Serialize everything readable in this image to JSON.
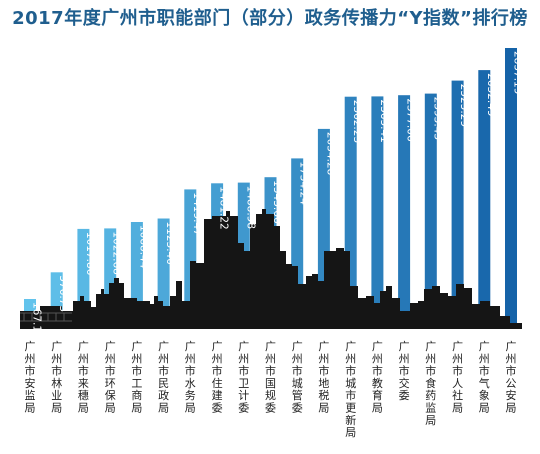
{
  "chart_data": {
    "type": "bar",
    "title": "2017年度广州市职能部门（部分）政务传播力“Y指数”排行榜",
    "xlabel": "",
    "ylabel": "",
    "ylim": [
      0,
      2857.19
    ],
    "grid": false,
    "legend": "none",
    "categories": [
      "广州市安监局",
      "广州市林业局",
      "广州市来穗局",
      "广州市环保局",
      "广州市工商局",
      "广州市民政局",
      "广州市水务局",
      "广州市住建委",
      "广州市卫计委",
      "广州市国规委",
      "广州市城管委",
      "广州市地税局",
      "广州市城市更新局",
      "广州市教育局",
      "广州市交委",
      "广州市食药监局",
      "广州市人社局",
      "广州市气象局",
      "广州市公安局"
    ],
    "value_labels": [
      "167.16",
      "576.73",
      "1017.86",
      "1022.68",
      "1088.44",
      "1123.40",
      "1419.47",
      "1481.22",
      "1488.98",
      "1543.66",
      "1734.24",
      "2034.28",
      "2362.23",
      "2365.41",
      "2377.06",
      "2393.43",
      "2525.29",
      "2632.49",
      "2857.19"
    ],
    "values": [
      167.16,
      576.73,
      1017.86,
      1022.68,
      1088.44,
      1123.4,
      1419.47,
      1481.22,
      1488.98,
      1543.66,
      1734.24,
      2034.28,
      2362.23,
      2365.41,
      2377.06,
      2393.43,
      2525.29,
      2632.49,
      2857.19
    ],
    "colors": {
      "bar_light": "#62c3ec",
      "bar_dark": "#1563a8",
      "skyline": "#151515",
      "title": "#1f5e8e"
    }
  }
}
